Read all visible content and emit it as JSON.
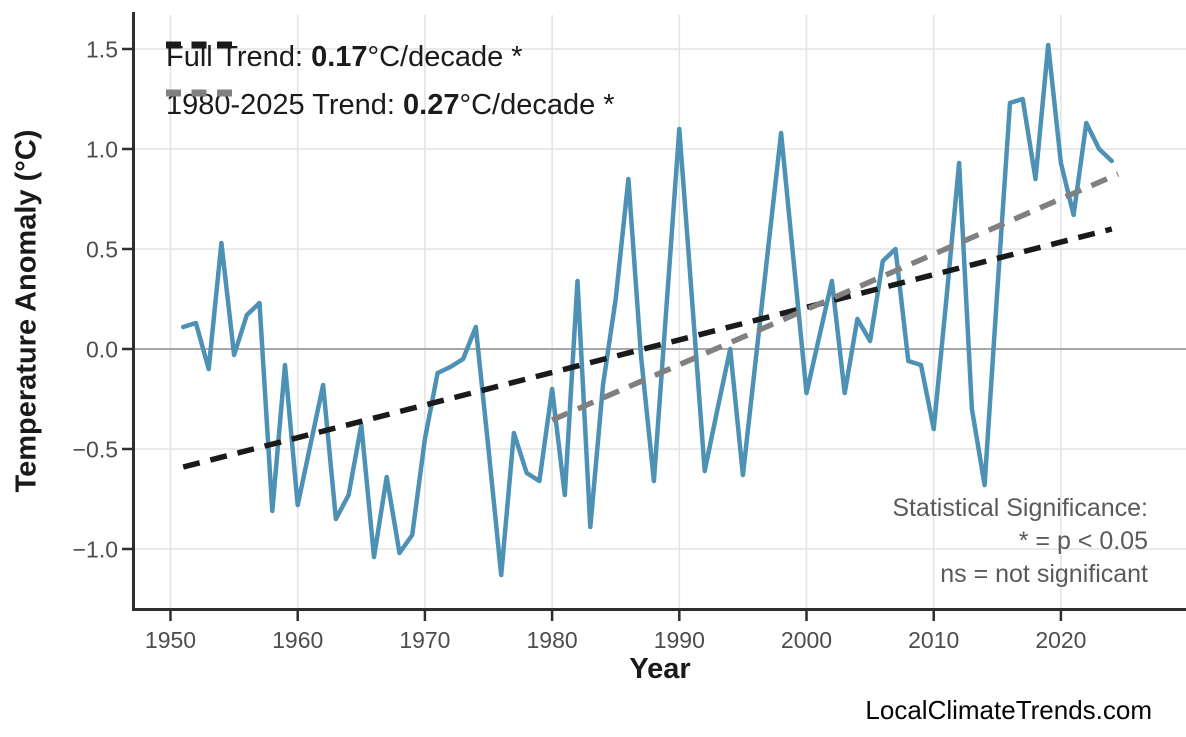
{
  "page": {
    "background": "#ffffff"
  },
  "legend": {
    "full": {
      "label_prefix": "Full Trend: ",
      "value": "0.17",
      "label_suffix": "°C/decade *",
      "color": "#1a1a1a"
    },
    "recent": {
      "label_prefix": "1980-2025 Trend: ",
      "value": "0.27",
      "label_suffix": "°C/decade *",
      "color": "#808080"
    }
  },
  "annotations": {
    "significance": [
      "Statistical Significance:",
      "* = p < 0.05",
      "ns = not significant"
    ],
    "watermark": "LocalClimateTrends.com"
  },
  "chart_data": {
    "type": "line",
    "title": "",
    "xlabel": "Year",
    "ylabel": "Temperature Anomaly (°C)",
    "xlim": [
      1947.2,
      2029.8
    ],
    "ylim": [
      -1.3,
      1.67
    ],
    "grid": true,
    "zero_line": 0.0,
    "x_ticks": [
      1950,
      1960,
      1970,
      1980,
      1990,
      2000,
      2010,
      2020
    ],
    "y_ticks": [
      {
        "label": "1.5",
        "value": 1.5
      },
      {
        "label": "1.0",
        "value": 1.0
      },
      {
        "label": "0.5",
        "value": 0.5
      },
      {
        "label": "0.0",
        "value": 0.0
      },
      {
        "label": "−0.5",
        "value": -0.5
      },
      {
        "label": "−1.0",
        "value": -1.0
      }
    ],
    "series": [
      {
        "name": "observed-anomaly",
        "style": "solid",
        "color": "#4d91b4",
        "x": [
          1951,
          1952,
          1953,
          1954,
          1955,
          1956,
          1957,
          1958,
          1959,
          1960,
          1961,
          1962,
          1963,
          1964,
          1965,
          1966,
          1967,
          1968,
          1969,
          1970,
          1971,
          1972,
          1973,
          1974,
          1975,
          1976,
          1977,
          1978,
          1979,
          1980,
          1981,
          1982,
          1983,
          1984,
          1985,
          1986,
          1987,
          1988,
          1989,
          1990,
          1991,
          1992,
          1993,
          1994,
          1995,
          1996,
          1997,
          1998,
          1999,
          2000,
          2001,
          2002,
          2003,
          2004,
          2005,
          2006,
          2007,
          2008,
          2009,
          2010,
          2011,
          2012,
          2013,
          2014,
          2015,
          2016,
          2017,
          2018,
          2019,
          2020,
          2021,
          2022,
          2023,
          2024
        ],
        "y": [
          0.11,
          0.13,
          -0.1,
          0.53,
          -0.03,
          0.17,
          0.23,
          -0.81,
          -0.08,
          -0.78,
          -0.48,
          -0.18,
          -0.85,
          -0.73,
          -0.38,
          -1.04,
          -0.64,
          -1.02,
          -0.93,
          -0.45,
          -0.12,
          -0.09,
          -0.05,
          0.11,
          -0.5,
          -1.13,
          -0.42,
          -0.62,
          -0.66,
          -0.2,
          -0.73,
          0.34,
          -0.89,
          -0.18,
          0.25,
          0.85,
          -0.04,
          -0.66,
          0.22,
          1.1,
          0.25,
          -0.61,
          -0.3,
          0.0,
          -0.63,
          -0.06,
          0.51,
          1.08,
          0.43,
          -0.22,
          0.06,
          0.34,
          -0.22,
          0.15,
          0.04,
          0.44,
          0.5,
          -0.06,
          -0.08,
          -0.4,
          0.25,
          0.93,
          -0.3,
          -0.68,
          0.29,
          1.23,
          1.25,
          0.85,
          1.52,
          0.93,
          0.67,
          1.13,
          1.0,
          0.94
        ]
      },
      {
        "name": "full-trend",
        "style": "dashed",
        "color": "#1a1a1a",
        "slope_per_decade": 0.17,
        "x": [
          1951,
          2024
        ],
        "y": [
          -0.59,
          0.6
        ]
      },
      {
        "name": "trend-1980-2025",
        "style": "dashed",
        "color": "#808080",
        "slope_per_decade": 0.27,
        "x": [
          1980,
          2024.5
        ],
        "y": [
          -0.355,
          0.875
        ]
      }
    ]
  }
}
